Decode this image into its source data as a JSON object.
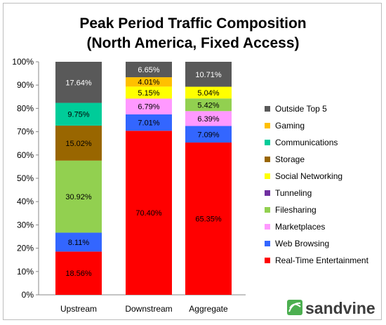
{
  "chart_data": {
    "type": "bar",
    "stacked": true,
    "title": "Peak Period Traffic Composition",
    "subtitle": "(North America, Fixed Access)",
    "categories": [
      "Upstream",
      "Downstream",
      "Aggregate"
    ],
    "ylim": [
      0,
      100
    ],
    "yticks": [
      "0%",
      "10%",
      "20%",
      "30%",
      "40%",
      "50%",
      "60%",
      "70%",
      "80%",
      "90%",
      "100%"
    ],
    "grid": false,
    "legend_position": "right",
    "series": [
      {
        "name": "Real-Time Entertainment",
        "color": "#ff0000",
        "values": [
          18.56,
          70.4,
          65.35
        ],
        "labels": [
          "18.56%",
          "70.40%",
          "65.35%"
        ]
      },
      {
        "name": "Web Browsing",
        "color": "#3366ff",
        "values": [
          8.11,
          7.01,
          7.09
        ],
        "labels": [
          "8.11%",
          "7.01%",
          "7.09%"
        ]
      },
      {
        "name": "Marketplaces",
        "color": "#ff99ff",
        "values": [
          0,
          6.79,
          6.39
        ],
        "labels": [
          "",
          "6.79%",
          "6.39%"
        ]
      },
      {
        "name": "Filesharing",
        "color": "#92d050",
        "values": [
          30.92,
          0,
          5.42
        ],
        "labels": [
          "30.92%",
          "",
          "5.42%"
        ]
      },
      {
        "name": "Tunneling",
        "color": "#7030a0",
        "values": [
          0,
          0,
          0
        ],
        "labels": [
          "",
          "",
          ""
        ]
      },
      {
        "name": "Social Networking",
        "color": "#ffff00",
        "values": [
          0,
          5.15,
          5.04
        ],
        "labels": [
          "",
          "5.15%",
          "5.04%"
        ]
      },
      {
        "name": "Storage",
        "color": "#996600",
        "values": [
          15.02,
          0,
          0
        ],
        "labels": [
          "15.02%",
          "",
          ""
        ]
      },
      {
        "name": "Communications",
        "color": "#00cc99",
        "values": [
          9.75,
          0,
          0
        ],
        "labels": [
          "9.75%",
          "",
          ""
        ]
      },
      {
        "name": "Gaming",
        "color": "#ffc000",
        "values": [
          0,
          4.01,
          0
        ],
        "labels": [
          "",
          "4.01%",
          ""
        ]
      },
      {
        "name": "Outside Top 5",
        "color": "#595959",
        "values": [
          17.64,
          6.65,
          10.71
        ],
        "labels": [
          "17.64%",
          "6.65%",
          "10.71%"
        ]
      }
    ]
  },
  "brand": {
    "name": "sandvine",
    "color": "#4caf50"
  }
}
